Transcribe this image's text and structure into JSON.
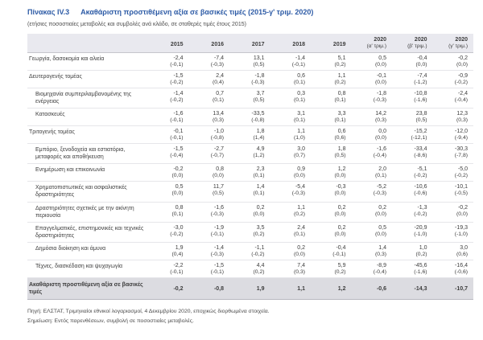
{
  "header": {
    "table_number": "Πίνακας IV.3",
    "title": "Ακαθάριστη προστιθέμενη αξία σε βασικές τιμές (2015-γ' τριμ. 2020)",
    "subtitle": "(ετήσιες ποσοστιαίες μεταβολές και συμβολές ανά κλάδο, σε σταθερές τιμές έτους 2015)"
  },
  "columns": [
    {
      "year": "2015",
      "quarter": ""
    },
    {
      "year": "2016",
      "quarter": ""
    },
    {
      "year": "2017",
      "quarter": ""
    },
    {
      "year": "2018",
      "quarter": ""
    },
    {
      "year": "2019",
      "quarter": ""
    },
    {
      "year": "2020",
      "quarter": "(α' τριμ.)"
    },
    {
      "year": "2020",
      "quarter": "(β' τριμ.)"
    },
    {
      "year": "2020",
      "quarter": "(γ' τριμ.)"
    }
  ],
  "rows": [
    {
      "label": "Γεωργία, δασοκομία και αλιεία",
      "indent": false,
      "values": [
        "-2,4",
        "-7,4",
        "13,1",
        "-1,4",
        "5,1",
        "0,5",
        "-0,4",
        "-0,2"
      ],
      "contrib": [
        "(-0,1)",
        "(-0,3)",
        "(0,5)",
        "(-0,1)",
        "(0,2)",
        "(0,0)",
        "(0,0)",
        "(0,0)"
      ]
    },
    {
      "label": "Δευτερογενής τομέας",
      "indent": false,
      "values": [
        "-1,5",
        "2,4",
        "-1,8",
        "0,6",
        "1,1",
        "-0,1",
        "-7,4",
        "-0,9"
      ],
      "contrib": [
        "(-0,2)",
        "(0,4)",
        "(-0,3)",
        "(0,1)",
        "(0,2)",
        "(0,0)",
        "(-1,2)",
        "(-0,2)"
      ]
    },
    {
      "label": "Βιομηχανία συμπεριλαμβανομένης της ενέργειας",
      "indent": true,
      "values": [
        "-1,4",
        "0,7",
        "3,7",
        "0,3",
        "0,8",
        "-1,8",
        "-10,8",
        "-2,4"
      ],
      "contrib": [
        "(-0,2)",
        "(0,1)",
        "(0,5)",
        "(0,1)",
        "(0,1)",
        "(-0,3)",
        "(-1,6)",
        "(-0,4)"
      ]
    },
    {
      "label": "Κατασκευές",
      "indent": true,
      "values": [
        "-1,6",
        "13,4",
        "-33,5",
        "3,1",
        "3,3",
        "14,2",
        "23,8",
        "12,3"
      ],
      "contrib": [
        "(-0,1)",
        "(0,3)",
        "(-0,8)",
        "(0,1)",
        "(0,1)",
        "(0,3)",
        "(0,5)",
        "(0,3)"
      ]
    },
    {
      "label": "Τριτογενής τομέας",
      "indent": false,
      "values": [
        "-0,1",
        "-1,0",
        "1,8",
        "1,1",
        "0,6",
        "0,0",
        "-15,2",
        "-12,0"
      ],
      "contrib": [
        "(-0,1)",
        "(-0,8)",
        "(1,4)",
        "(1,0)",
        "(0,6)",
        "(0,0)",
        "(-12,1)",
        "(-9,4)"
      ]
    },
    {
      "label": "Εμπόριο, ξενοδοχεία και εστιατόρια, μεταφορές και αποθήκευση",
      "indent": true,
      "values": [
        "-1,5",
        "-2,7",
        "4,9",
        "3,0",
        "1,8",
        "-1,6",
        "-33,4",
        "-30,3"
      ],
      "contrib": [
        "(-0,4)",
        "(-0,7)",
        "(1,2)",
        "(0,7)",
        "(0,5)",
        "(-0,4)",
        "(-8,6)",
        "(-7,8)"
      ]
    },
    {
      "label": "Ενημέρωση και επικοινωνία",
      "indent": true,
      "values": [
        "-0,2",
        "0,8",
        "2,3",
        "0,9",
        "1,2",
        "2,0",
        "-5,1",
        "-5,0"
      ],
      "contrib": [
        "(0,0)",
        "(0,0)",
        "(0,1)",
        "(0,0)",
        "(0,0)",
        "(0,1)",
        "(-0,2)",
        "(-0,2)"
      ]
    },
    {
      "label": "Χρηματοπιστωτικές και ασφαλιστικές δραστηριότητες",
      "indent": true,
      "values": [
        "0,5",
        "11,7",
        "1,4",
        "-5,4",
        "-0,3",
        "-5,2",
        "-10,6",
        "-10,1"
      ],
      "contrib": [
        "(0,0)",
        "(0,5)",
        "(0,1)",
        "(-0,3)",
        "(0,0)",
        "(-0,3)",
        "(-0,6)",
        "(-0,5)"
      ]
    },
    {
      "label": "Δραστηριότητες σχετικές με την ακίνητη περιουσία",
      "indent": true,
      "values": [
        "0,8",
        "-1,6",
        "0,2",
        "1,1",
        "0,2",
        "0,2",
        "-1,3",
        "-0,2"
      ],
      "contrib": [
        "(0,1)",
        "(-0,3)",
        "(0,0)",
        "(0,2)",
        "(0,0)",
        "(0,0)",
        "(-0,2)",
        "(0,0)"
      ]
    },
    {
      "label": "Επαγγελματικές, επιστημονικές και τεχνικές δραστηριότητες",
      "indent": true,
      "values": [
        "-3,0",
        "-1,9",
        "3,5",
        "2,4",
        "0,2",
        "0,5",
        "-20,9",
        "-19,3"
      ],
      "contrib": [
        "(-0,2)",
        "(-0,1)",
        "(0,2)",
        "(0,1)",
        "(0,0)",
        "(0,0)",
        "(-1,0)",
        "(-1,0)"
      ]
    },
    {
      "label": "Δημόσια διοίκηση και άμυνα",
      "indent": true,
      "values": [
        "1,9",
        "-1,4",
        "-1,1",
        "0,2",
        "-0,4",
        "1,4",
        "1,0",
        "3,0"
      ],
      "contrib": [
        "(0,4)",
        "(-0,3)",
        "(-0,2)",
        "(0,0)",
        "(-0,1)",
        "(0,3)",
        "(0,2)",
        "(0,6)"
      ]
    },
    {
      "label": "Τέχνες, διασκέδαση και ψυχαγωγία",
      "indent": true,
      "values": [
        "-2,2",
        "-1,5",
        "4,4",
        "7,4",
        "5,9",
        "-8,9",
        "-45,6",
        "-16,4"
      ],
      "contrib": [
        "(-0,1)",
        "(-0,1)",
        "(0,2)",
        "(0,3)",
        "(0,2)",
        "(-0,4)",
        "(-1,6)",
        "(-0,6)"
      ]
    }
  ],
  "total_row": {
    "label": "Ακαθάριστη προστιθέμενη αξία σε βασικές τιμές",
    "values": [
      "-0,2",
      "-0,8",
      "1,9",
      "1,1",
      "1,2",
      "-0,6",
      "-14,3",
      "-10,7"
    ]
  },
  "footer": {
    "source": "Πηγή: ΕΛΣΤΑΤ, Τριμηνιαίοι εθνικοί λογαριασμοί, 4 Δεκεμβρίου 2020, εποχικώς διορθωμένα στοιχεία.",
    "note": "Σημείωση: Εντός παρενθέσεων, συμβολή σε ποσοστιαίες μεταβολές."
  },
  "colors": {
    "title_blue": "#2d5ba6",
    "header_band": "#e9e9ef",
    "total_band": "#dcdce1",
    "text": "#3c3c3c"
  }
}
